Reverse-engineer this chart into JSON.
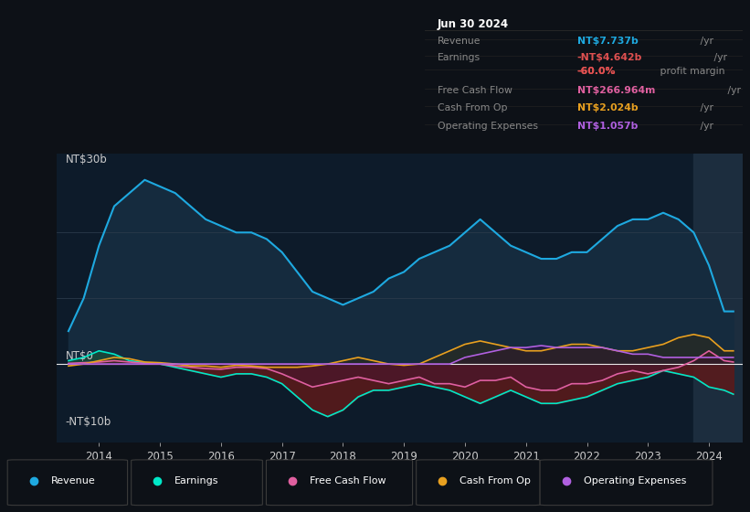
{
  "bg_color": "#0d1117",
  "plot_bg_color": "#0d1b2a",
  "zero_line_color": "#ffffff",
  "ytick_color": "#cccccc",
  "xtick_color": "#cccccc",
  "ylabel_30": "NT$30b",
  "ylabel_0": "NT$0",
  "ylabel_neg10": "-NT$10b",
  "years": [
    2013.5,
    2013.75,
    2014,
    2014.25,
    2014.5,
    2014.75,
    2015,
    2015.25,
    2015.5,
    2015.75,
    2016,
    2016.25,
    2016.5,
    2016.75,
    2017,
    2017.25,
    2017.5,
    2017.75,
    2018,
    2018.25,
    2018.5,
    2018.75,
    2019,
    2019.25,
    2019.5,
    2019.75,
    2020,
    2020.25,
    2020.5,
    2020.75,
    2021,
    2021.25,
    2021.5,
    2021.75,
    2022,
    2022.25,
    2022.5,
    2022.75,
    2023,
    2023.25,
    2023.5,
    2023.75,
    2024,
    2024.25,
    2024.4
  ],
  "revenue": [
    5,
    10,
    18,
    24,
    26,
    28,
    27,
    26,
    24,
    22,
    21,
    20,
    20,
    19,
    17,
    14,
    11,
    10,
    9,
    10,
    11,
    13,
    14,
    16,
    17,
    18,
    20,
    22,
    20,
    18,
    17,
    16,
    16,
    17,
    17,
    19,
    21,
    22,
    22,
    23,
    22,
    20,
    15,
    8,
    8
  ],
  "earnings": [
    0.5,
    1,
    2,
    1.5,
    0.5,
    0.2,
    0,
    -0.5,
    -1,
    -1.5,
    -2,
    -1.5,
    -1.5,
    -2,
    -3,
    -5,
    -7,
    -8,
    -7,
    -5,
    -4,
    -4,
    -3.5,
    -3,
    -3.5,
    -4,
    -5,
    -6,
    -5,
    -4,
    -5,
    -6,
    -6,
    -5.5,
    -5,
    -4,
    -3,
    -2.5,
    -2,
    -1,
    -1.5,
    -2,
    -3.5,
    -4,
    -4.6
  ],
  "free_cash_flow": [
    0.1,
    0.2,
    0.3,
    0.5,
    0.3,
    0.1,
    0,
    -0.3,
    -0.5,
    -0.7,
    -0.8,
    -0.5,
    -0.5,
    -0.7,
    -1.5,
    -2.5,
    -3.5,
    -3,
    -2.5,
    -2,
    -2.5,
    -3,
    -2.5,
    -2,
    -3,
    -3,
    -3.5,
    -2.5,
    -2.5,
    -2,
    -3.5,
    -4,
    -4,
    -3,
    -3,
    -2.5,
    -1.5,
    -1,
    -1.5,
    -1,
    -0.5,
    0.5,
    2,
    0.5,
    0.3
  ],
  "cash_from_op": [
    -0.3,
    0,
    0.5,
    1.0,
    0.8,
    0.3,
    0.2,
    0,
    -0.3,
    -0.3,
    -0.5,
    -0.2,
    -0.3,
    -0.5,
    -0.5,
    -0.5,
    -0.3,
    0,
    0.5,
    1.0,
    0.5,
    0,
    -0.2,
    0,
    1,
    2,
    3,
    3.5,
    3,
    2.5,
    2,
    2,
    2.5,
    3,
    3,
    2.5,
    2,
    2,
    2.5,
    3,
    4,
    4.5,
    4,
    2,
    2
  ],
  "operating_expenses": [
    0,
    0,
    0,
    0,
    0,
    0,
    0,
    0,
    0,
    0,
    0,
    0,
    0,
    0,
    0,
    0,
    0,
    0,
    0,
    0,
    0,
    0,
    0,
    0,
    0,
    0,
    1,
    1.5,
    2,
    2.5,
    2.5,
    2.8,
    2.5,
    2.5,
    2.5,
    2.5,
    2,
    1.5,
    1.5,
    1,
    1,
    1,
    1,
    1,
    1
  ],
  "revenue_color": "#1ea9e0",
  "revenue_fill": "#152b3e",
  "earnings_color": "#00e8c8",
  "earnings_fill_neg": "#5c1a1a",
  "earnings_fill_pos": "#1a4a3a",
  "free_cash_flow_color": "#e060a0",
  "free_cash_flow_fill": "#4a1530",
  "cash_from_op_color": "#e8a020",
  "cash_from_op_fill": "#3a2a0a",
  "operating_expenses_color": "#b060e0",
  "operating_expenses_fill": "#2a1040",
  "grid_line_color": "#2a3a4a",
  "info_box": {
    "date": "Jun 30 2024",
    "revenue_label": "Revenue",
    "revenue_value": "NT$7.737b",
    "revenue_value_color": "#1ea9e0",
    "earnings_label": "Earnings",
    "earnings_value": "-NT$4.642b",
    "earnings_value_color": "#e05050",
    "earnings_margin": "-60.0%",
    "earnings_margin_color": "#e05050",
    "earnings_margin_text": " profit margin",
    "fcf_label": "Free Cash Flow",
    "fcf_value": "NT$266.964m",
    "fcf_value_color": "#e060a0",
    "cashop_label": "Cash From Op",
    "cashop_value": "NT$2.024b",
    "cashop_value_color": "#e8a020",
    "opex_label": "Operating Expenses",
    "opex_value": "NT$1.057b",
    "opex_value_color": "#b060e0"
  },
  "legend_items": [
    {
      "label": "Revenue",
      "color": "#1ea9e0"
    },
    {
      "label": "Earnings",
      "color": "#00e8c8"
    },
    {
      "label": "Free Cash Flow",
      "color": "#e060a0"
    },
    {
      "label": "Cash From Op",
      "color": "#e8a020"
    },
    {
      "label": "Operating Expenses",
      "color": "#b060e0"
    }
  ],
  "xmin": 2013.3,
  "xmax": 2024.55,
  "ymin": -12,
  "ymax": 32,
  "highlight_xstart": 2023.75,
  "highlight_color": "#1c2d3e"
}
